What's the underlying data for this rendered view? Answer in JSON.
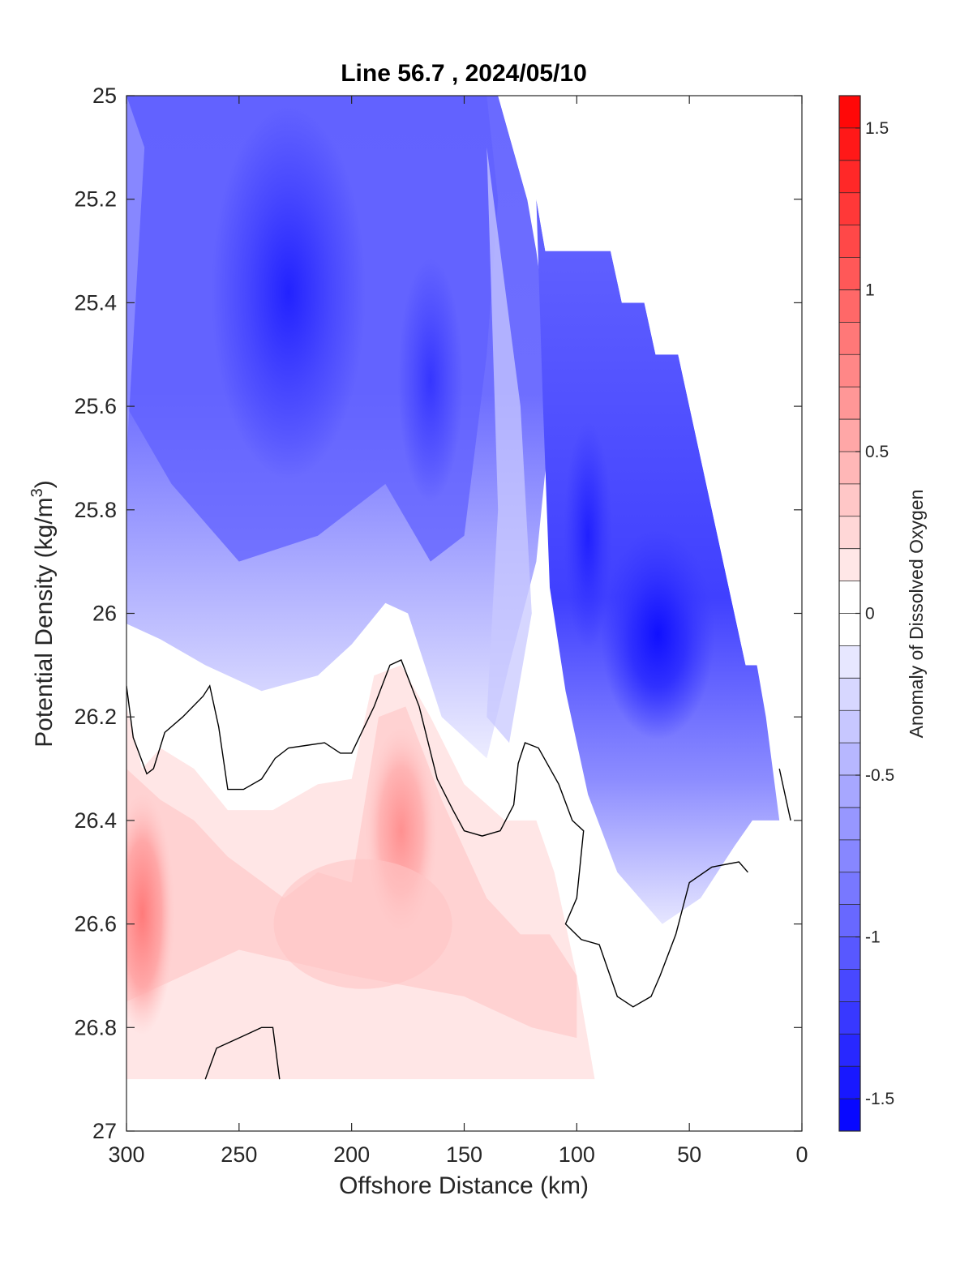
{
  "chart_data": {
    "type": "heatmap",
    "subtype": "filled-contour",
    "title": "Line 56.7 , 2024/05/10",
    "xlabel": "Offshore Distance (km)",
    "ylabel": "Potential Density (kg/m",
    "ylabel_sup": "3",
    "ylabel_close": ")",
    "xlim": [
      300,
      0
    ],
    "x_reversed": true,
    "ylim": [
      25,
      27
    ],
    "y_reversed": true,
    "xticks": [
      300,
      250,
      200,
      150,
      100,
      50,
      0
    ],
    "xtick_labels": [
      "300",
      "250",
      "200",
      "150",
      "100",
      "50",
      "0"
    ],
    "yticks": [
      25,
      25.2,
      25.4,
      25.6,
      25.8,
      26,
      26.2,
      26.4,
      26.6,
      26.8,
      27
    ],
    "ytick_labels": [
      "25",
      "25.2",
      "25.4",
      "25.6",
      "25.8",
      "26",
      "26.2",
      "26.4",
      "26.6",
      "26.8",
      "27"
    ],
    "colorbar": {
      "label": "Anomaly of Dissolved Oxygen",
      "range": [
        -1.6,
        1.6
      ],
      "step": 0.1,
      "ticks": [
        1.5,
        1,
        0.5,
        0,
        -0.5,
        -1,
        -1.5
      ],
      "tick_labels": [
        "1.5",
        "1",
        "0.5",
        "0",
        "-0.5",
        "-1",
        "-1.5"
      ],
      "colormap": "blue-white-red",
      "color_negative": "#0000ff",
      "color_zero": "#ffffff",
      "color_positive": "#ff0000"
    },
    "contour_line": {
      "level": 0,
      "color": "#000000"
    },
    "regions": [
      {
        "name": "offshore-surface-low-oxygen",
        "x": [
          300,
          125
        ],
        "y": [
          25,
          26.3
        ],
        "anomaly": -1.0
      },
      {
        "name": "core-near-230km",
        "x": 230,
        "y": 25.5,
        "anomaly": -1.3
      },
      {
        "name": "nearshore-low-oxygen",
        "x": [
          100,
          10
        ],
        "y": [
          25.3,
          26.7
        ],
        "anomaly": -1.1
      },
      {
        "name": "core-near-60km",
        "x": 60,
        "y": 26.05,
        "anomaly": -1.5
      },
      {
        "name": "deep-positive-west",
        "x": 295,
        "y": 26.6,
        "anomaly": 0.8
      },
      {
        "name": "positive-near-180km",
        "x": 180,
        "y": 26.4,
        "anomaly": 0.6
      },
      {
        "name": "deep-positive-band",
        "x": [
          300,
          100
        ],
        "y": [
          26.4,
          26.9
        ],
        "anomaly": 0.2
      }
    ],
    "grid": false
  }
}
